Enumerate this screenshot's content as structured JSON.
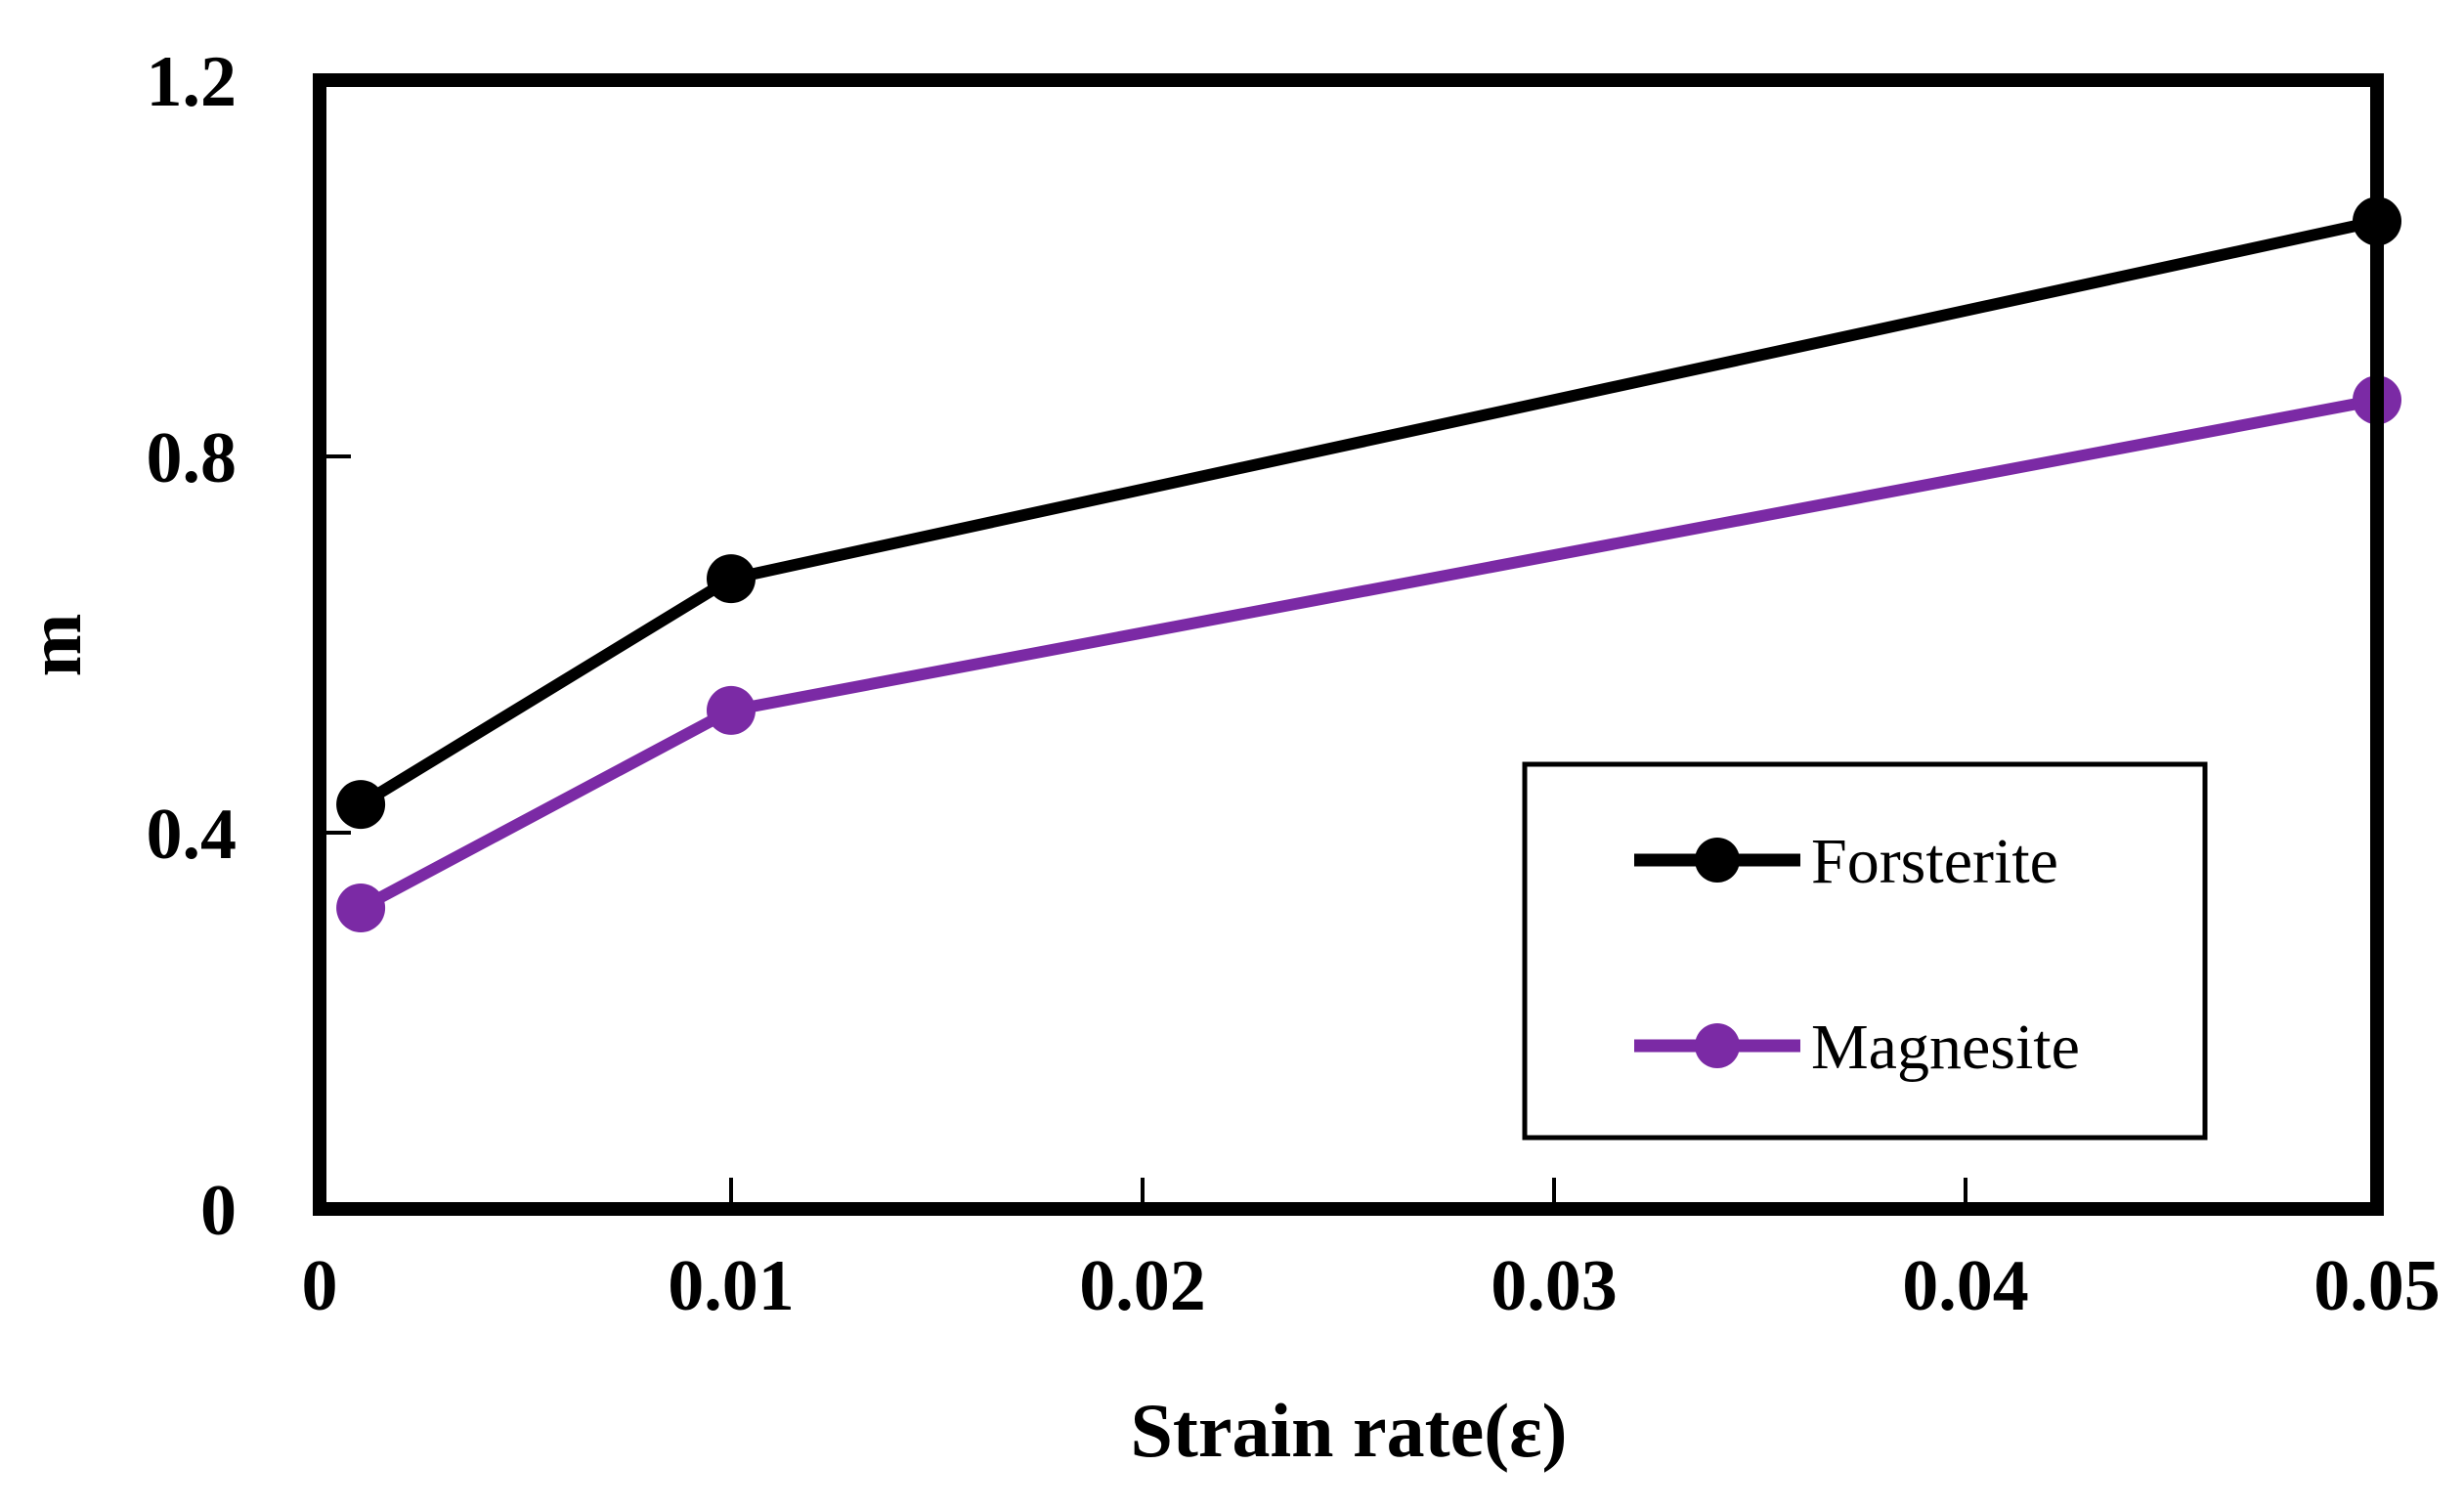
{
  "chart_data": {
    "type": "line",
    "title": "",
    "xlabel": "Strain rate(ε)",
    "ylabel": "m",
    "xlim": [
      0,
      0.05
    ],
    "ylim": [
      0,
      1.2
    ],
    "xticks": [
      0,
      0.01,
      0.02,
      0.03,
      0.04,
      0.05
    ],
    "xtick_labels": [
      "0",
      "0.01",
      "0.02",
      "0.03",
      "0.04",
      "0.05"
    ],
    "yticks": [
      0,
      0.4,
      0.8,
      1.2
    ],
    "ytick_labels": [
      "0",
      "0.4",
      "0.8",
      "1.2"
    ],
    "grid": false,
    "legend_position": "bottom-right",
    "series": [
      {
        "name": "Forsterite",
        "color": "#000000",
        "x": [
          0.001,
          0.01,
          0.05
        ],
        "y": [
          0.43,
          0.67,
          1.05
        ]
      },
      {
        "name": "Magnesite",
        "color": "#7b2aa5",
        "x": [
          0.001,
          0.01,
          0.05
        ],
        "y": [
          0.32,
          0.53,
          0.86
        ]
      }
    ]
  }
}
